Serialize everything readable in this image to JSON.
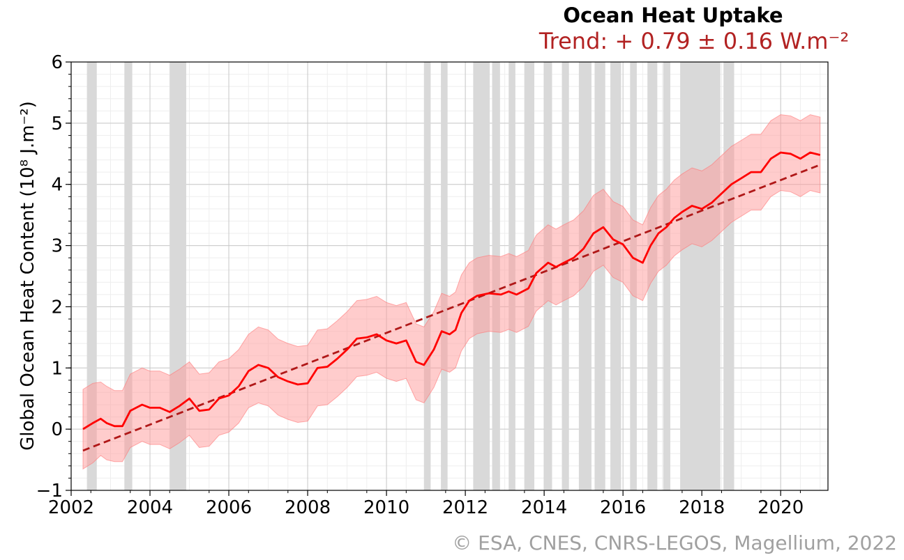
{
  "title": "Ocean Heat Uptake",
  "trend_label": "Trend: + 0.79 ± 0.16 W.m⁻²",
  "credit": "© ESA, CNES, CNRS-LEGOS, Magellium, 2022",
  "ylabel": "Global Ocean Heat Content (10⁸ J.m⁻²)",
  "colors": {
    "series": "#ff0000",
    "trend": "#b01818",
    "band": "#ff9999",
    "gap": "#d9d9d9",
    "title_trend": "#b22222",
    "credit": "#a0a0a0"
  },
  "chart_data": {
    "type": "line",
    "title": "Ocean Heat Uptake",
    "subtitle": "Trend: + 0.79 ± 0.16 W.m⁻²",
    "xlabel": "",
    "ylabel": "Global Ocean Heat Content (10⁸ J.m⁻²)",
    "xlim": [
      2002.0,
      2021.2
    ],
    "ylim": [
      -1,
      6
    ],
    "xticks": [
      2002,
      2004,
      2006,
      2008,
      2010,
      2012,
      2014,
      2016,
      2018,
      2020
    ],
    "yticks": [
      -1,
      0,
      1,
      2,
      3,
      4,
      5,
      6
    ],
    "grid": true,
    "series": [
      {
        "name": "Global Ocean Heat Content",
        "x": [
          2002.3,
          2002.55,
          2002.75,
          2002.9,
          2003.1,
          2003.3,
          2003.5,
          2003.8,
          2004.0,
          2004.25,
          2004.5,
          2004.75,
          2005.0,
          2005.25,
          2005.5,
          2005.75,
          2006.0,
          2006.25,
          2006.5,
          2006.75,
          2007.0,
          2007.25,
          2007.5,
          2007.75,
          2008.0,
          2008.25,
          2008.5,
          2008.75,
          2009.0,
          2009.25,
          2009.5,
          2009.75,
          2010.0,
          2010.25,
          2010.5,
          2010.75,
          2010.95,
          2011.2,
          2011.4,
          2011.6,
          2011.75,
          2011.9,
          2012.1,
          2012.3,
          2012.6,
          2012.9,
          2013.1,
          2013.3,
          2013.6,
          2013.8,
          2014.1,
          2014.3,
          2014.5,
          2014.75,
          2015.0,
          2015.25,
          2015.5,
          2015.75,
          2016.0,
          2016.25,
          2016.5,
          2016.7,
          2016.9,
          2017.1,
          2017.3,
          2017.5,
          2017.75,
          2018.0,
          2018.25,
          2018.5,
          2018.75,
          2019.0,
          2019.25,
          2019.5,
          2019.75,
          2020.0,
          2020.25,
          2020.5,
          2020.75,
          2021.0
        ],
        "values": [
          0.0,
          0.1,
          0.17,
          0.1,
          0.05,
          0.05,
          0.3,
          0.4,
          0.35,
          0.35,
          0.28,
          0.38,
          0.5,
          0.3,
          0.32,
          0.5,
          0.55,
          0.7,
          0.95,
          1.05,
          1.0,
          0.85,
          0.78,
          0.73,
          0.75,
          1.0,
          1.02,
          1.15,
          1.3,
          1.48,
          1.5,
          1.55,
          1.45,
          1.4,
          1.45,
          1.1,
          1.05,
          1.3,
          1.6,
          1.55,
          1.62,
          1.9,
          2.1,
          2.18,
          2.22,
          2.2,
          2.25,
          2.2,
          2.3,
          2.55,
          2.72,
          2.65,
          2.72,
          2.8,
          2.95,
          3.2,
          3.3,
          3.1,
          3.02,
          2.8,
          2.72,
          3.0,
          3.2,
          3.3,
          3.45,
          3.55,
          3.65,
          3.6,
          3.7,
          3.85,
          4.0,
          4.1,
          4.2,
          4.2,
          4.42,
          4.52,
          4.5,
          4.42,
          4.52,
          4.48
        ],
        "uncertainty": [
          0.65,
          0.65,
          0.6,
          0.6,
          0.58,
          0.58,
          0.6,
          0.6,
          0.6,
          0.6,
          0.6,
          0.6,
          0.6,
          0.6,
          0.6,
          0.6,
          0.6,
          0.6,
          0.6,
          0.62,
          0.62,
          0.62,
          0.62,
          0.62,
          0.62,
          0.62,
          0.62,
          0.62,
          0.62,
          0.62,
          0.62,
          0.62,
          0.62,
          0.62,
          0.62,
          0.62,
          0.62,
          0.62,
          0.62,
          0.62,
          0.62,
          0.62,
          0.62,
          0.62,
          0.62,
          0.62,
          0.62,
          0.62,
          0.62,
          0.62,
          0.62,
          0.62,
          0.62,
          0.62,
          0.62,
          0.62,
          0.62,
          0.62,
          0.62,
          0.62,
          0.62,
          0.62,
          0.62,
          0.62,
          0.62,
          0.62,
          0.62,
          0.62,
          0.62,
          0.62,
          0.62,
          0.62,
          0.62,
          0.62,
          0.62,
          0.62,
          0.62,
          0.62,
          0.62,
          0.62
        ]
      },
      {
        "name": "Linear trend",
        "style": "dashed",
        "x": [
          2002.3,
          2021.0
        ],
        "values": [
          -0.35,
          4.32
        ]
      }
    ],
    "gaps": [
      [
        2002.4,
        2002.65
      ],
      [
        2003.35,
        2003.55
      ],
      [
        2004.5,
        2004.92
      ],
      [
        2010.95,
        2011.12
      ],
      [
        2011.38,
        2011.55
      ],
      [
        2012.2,
        2012.62
      ],
      [
        2012.68,
        2012.88
      ],
      [
        2013.1,
        2013.27
      ],
      [
        2013.5,
        2013.75
      ],
      [
        2014.0,
        2014.2
      ],
      [
        2014.45,
        2014.63
      ],
      [
        2014.88,
        2015.2
      ],
      [
        2015.28,
        2015.55
      ],
      [
        2015.68,
        2015.95
      ],
      [
        2016.18,
        2016.35
      ],
      [
        2016.62,
        2016.87
      ],
      [
        2017.02,
        2017.2
      ],
      [
        2017.45,
        2018.47
      ],
      [
        2018.55,
        2018.82
      ]
    ]
  }
}
